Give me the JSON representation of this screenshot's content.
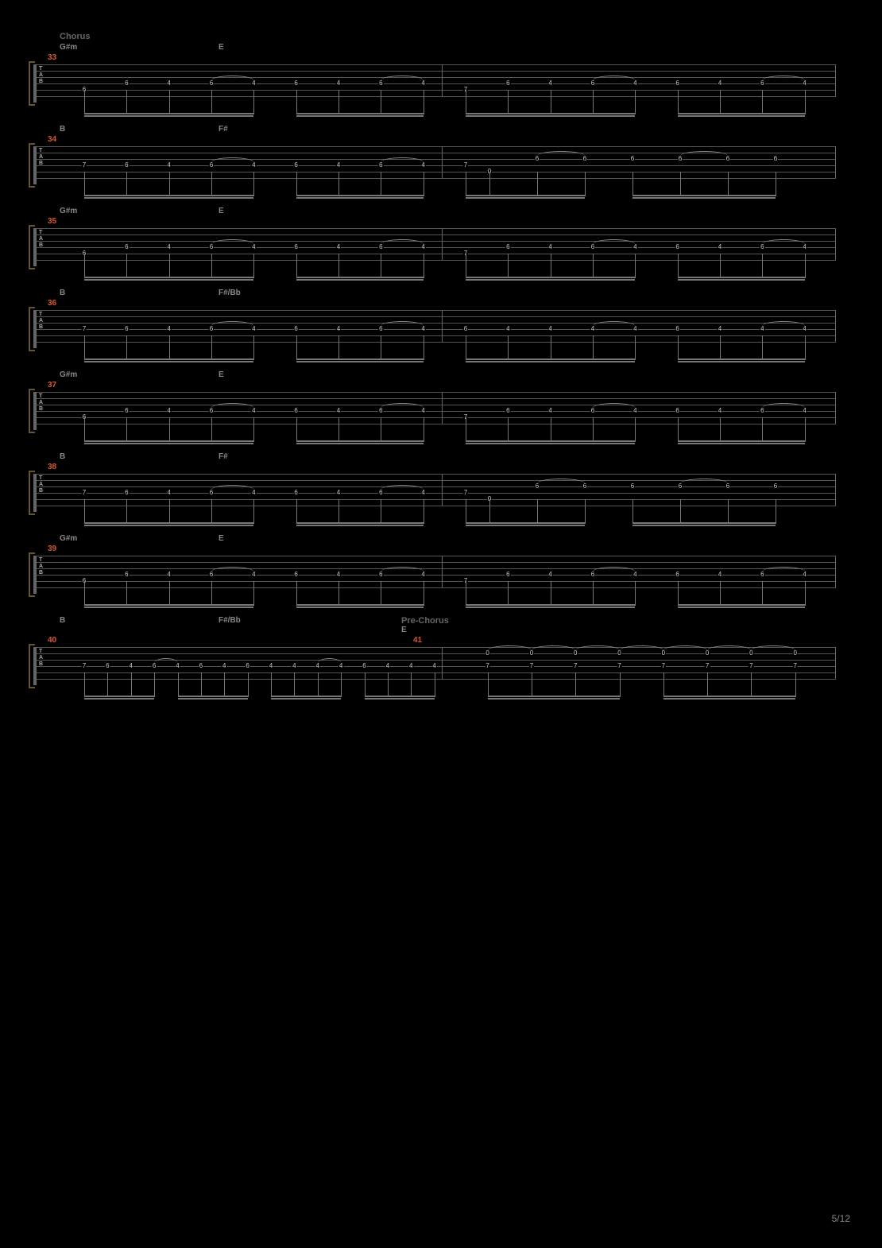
{
  "page": {
    "current": 5,
    "total": 12
  },
  "section_labels": {
    "chorus": "Chorus",
    "prechorus": "Pre-Chorus"
  },
  "colors": {
    "background": "#000000",
    "staff_line": "#555555",
    "text": "#888888",
    "measure_num": "#d65a31",
    "bracket": "#665533",
    "note": "#cccccc"
  },
  "tab_clef": [
    "T",
    "A",
    "B"
  ],
  "systems": [
    {
      "measure": 33,
      "section": "Chorus",
      "chords": [
        {
          "pos": "left",
          "name": "G#m"
        },
        {
          "pos": "right",
          "name": "E"
        }
      ],
      "pattern": "A",
      "halves": [
        {
          "root_string": 5,
          "root_fret": 6,
          "riff": [
            6,
            4,
            6,
            4,
            6,
            4,
            6,
            4
          ]
        },
        {
          "root_string": 5,
          "root_fret": 7,
          "riff": [
            6,
            4,
            6,
            4,
            6,
            4,
            6,
            4
          ]
        }
      ]
    },
    {
      "measure": 34,
      "chords": [
        {
          "pos": "left",
          "name": "B"
        },
        {
          "pos": "right",
          "name": "F#"
        }
      ],
      "pattern": "B",
      "halves": [
        {
          "root_string": 4,
          "root_fret": 7,
          "riff": [
            6,
            4,
            6,
            4,
            6,
            4,
            6,
            4
          ]
        },
        {
          "root_string_pair": [
            4,
            5
          ],
          "root_frets": [
            7,
            0
          ],
          "top_string": 3,
          "top_riff": [
            6,
            6,
            6,
            6,
            6,
            6
          ]
        }
      ]
    },
    {
      "measure": 35,
      "chords": [
        {
          "pos": "left",
          "name": "G#m"
        },
        {
          "pos": "right",
          "name": "E"
        }
      ],
      "pattern": "A",
      "halves": [
        {
          "root_string": 5,
          "root_fret": 6,
          "riff": [
            6,
            4,
            6,
            4,
            6,
            4,
            6,
            4
          ]
        },
        {
          "root_string": 5,
          "root_fret": 7,
          "riff": [
            6,
            4,
            6,
            4,
            6,
            4,
            6,
            4
          ]
        }
      ]
    },
    {
      "measure": 36,
      "chords": [
        {
          "pos": "left",
          "name": "B"
        },
        {
          "pos": "right",
          "name": "F#/Bb"
        }
      ],
      "pattern": "C",
      "halves": [
        {
          "root_string": 4,
          "root_fret": 7,
          "riff": [
            6,
            4,
            6,
            4,
            6,
            4,
            6,
            4
          ]
        },
        {
          "root_string": 4,
          "root_fret": 6,
          "riff": [
            4,
            4,
            4,
            4,
            6,
            4,
            4,
            4
          ]
        }
      ]
    },
    {
      "measure": 37,
      "chords": [
        {
          "pos": "left",
          "name": "G#m"
        },
        {
          "pos": "right",
          "name": "E"
        }
      ],
      "pattern": "A",
      "halves": [
        {
          "root_string": 5,
          "root_fret": 6,
          "riff": [
            6,
            4,
            6,
            4,
            6,
            4,
            6,
            4
          ]
        },
        {
          "root_string": 5,
          "root_fret": 7,
          "riff": [
            6,
            4,
            6,
            4,
            6,
            4,
            6,
            4
          ]
        }
      ]
    },
    {
      "measure": 38,
      "chords": [
        {
          "pos": "left",
          "name": "B"
        },
        {
          "pos": "right",
          "name": "F#"
        }
      ],
      "pattern": "B",
      "halves": [
        {
          "root_string": 4,
          "root_fret": 7,
          "riff": [
            6,
            4,
            6,
            4,
            6,
            4,
            6,
            4
          ]
        },
        {
          "root_string_pair": [
            4,
            5
          ],
          "root_frets": [
            7,
            0
          ],
          "top_string": 3,
          "top_riff": [
            6,
            6,
            6,
            6,
            6,
            6
          ]
        }
      ]
    },
    {
      "measure": 39,
      "chords": [
        {
          "pos": "left",
          "name": "G#m"
        },
        {
          "pos": "right",
          "name": "E"
        }
      ],
      "pattern": "A",
      "halves": [
        {
          "root_string": 5,
          "root_fret": 6,
          "riff": [
            6,
            4,
            6,
            4,
            6,
            4,
            6,
            4
          ]
        },
        {
          "root_string": 5,
          "root_fret": 7,
          "riff": [
            6,
            4,
            6,
            4,
            6,
            4,
            6,
            4
          ]
        }
      ]
    },
    {
      "measure": 40,
      "measure_second": 41,
      "section_second": "Pre-Chorus",
      "chords": [
        {
          "pos": "left",
          "name": "B"
        },
        {
          "pos": "mid",
          "name": "F#/Bb"
        },
        {
          "pos": "right",
          "name": "E"
        }
      ],
      "pattern": "D",
      "halves": [
        {
          "root_string": 4,
          "root_fret": 7,
          "compressed_riff": [
            6,
            4,
            6,
            4,
            6,
            4,
            6,
            4,
            4,
            4,
            4,
            6,
            4,
            4,
            4
          ]
        },
        {
          "root_string": 4,
          "root_fret": 7,
          "top_string": 2,
          "top_fret": 0,
          "count": 8
        }
      ]
    }
  ]
}
